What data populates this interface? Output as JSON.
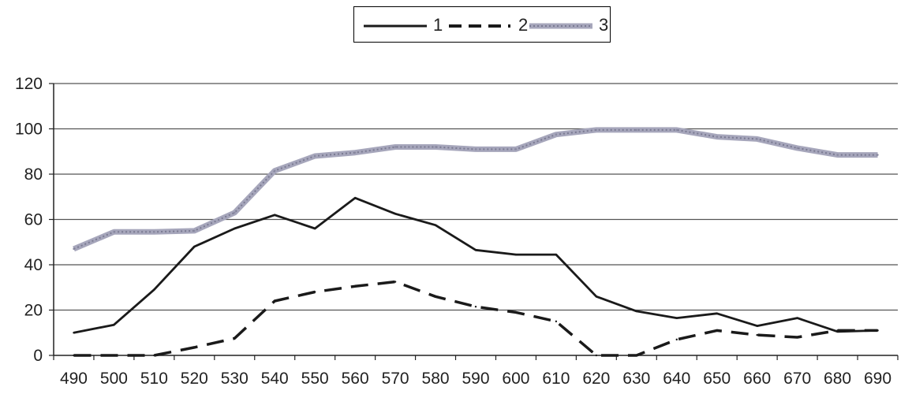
{
  "chart_data": {
    "type": "line",
    "title": "",
    "xlabel": "",
    "ylabel": "",
    "x": [
      490,
      500,
      510,
      520,
      530,
      540,
      550,
      560,
      570,
      580,
      590,
      600,
      610,
      620,
      630,
      640,
      650,
      660,
      670,
      680,
      690
    ],
    "x_tick_labels": [
      "490",
      "500",
      "510",
      "520",
      "530",
      "540",
      "550",
      "560",
      "570",
      "580",
      "590",
      "600",
      "610",
      "620",
      "630",
      "640",
      "650",
      "660",
      "670",
      "680",
      "690"
    ],
    "ylim": [
      0,
      120
    ],
    "y_ticks": [
      0,
      20,
      40,
      60,
      80,
      100,
      120
    ],
    "y_tick_labels": [
      "0",
      "20",
      "40",
      "60",
      "80",
      "100",
      "120"
    ],
    "grid": "horizontal",
    "legend_position": "top-center",
    "series": [
      {
        "name": "1",
        "style": "solid",
        "color": "#1a1a1a",
        "values": [
          10,
          13.5,
          29,
          48,
          56,
          62,
          56,
          69.5,
          62.5,
          57.5,
          46.5,
          44.5,
          44.5,
          26,
          19.5,
          16.5,
          18.5,
          13,
          16.5,
          10.5,
          11
        ]
      },
      {
        "name": "2",
        "style": "dashed",
        "color": "#1a1a1a",
        "values": [
          0,
          0,
          0,
          3.5,
          7.5,
          24,
          28,
          30.5,
          32.5,
          26,
          21.5,
          19,
          15,
          0,
          0,
          7,
          11,
          9,
          8,
          11,
          11
        ]
      },
      {
        "name": "3",
        "style": "textured",
        "color": "#9c9cb3",
        "values": [
          47,
          54.5,
          54.5,
          55,
          63,
          81.5,
          88,
          89.5,
          92,
          92,
          91,
          91,
          97.5,
          99.5,
          99.5,
          99.5,
          96.5,
          95.5,
          91.5,
          88.5,
          88.5
        ]
      }
    ]
  }
}
